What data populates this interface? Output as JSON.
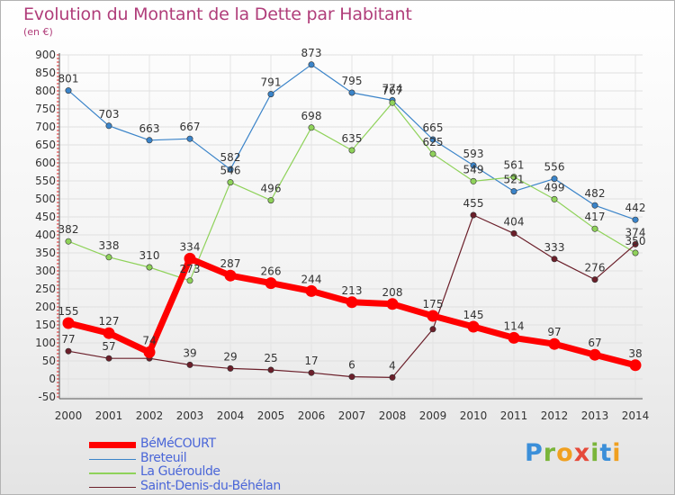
{
  "header": {
    "title": "Evolution du Montant de la Dette par Habitant",
    "unit": "(en €)"
  },
  "brand": {
    "logo_text": "Proxiti",
    "letters": [
      "P",
      "r",
      "o",
      "x",
      "i",
      "t",
      "i"
    ]
  },
  "chart_data": {
    "type": "line",
    "title": "Evolution du Montant de la Dette par Habitant",
    "subtitle": "(en €)",
    "x": [
      2000,
      2001,
      2002,
      2003,
      2004,
      2005,
      2006,
      2007,
      2008,
      2009,
      2010,
      2011,
      2012,
      2013,
      2014
    ],
    "ylim": [
      -50,
      900
    ],
    "yticks": [
      -50,
      0,
      50,
      100,
      150,
      200,
      250,
      300,
      350,
      400,
      450,
      500,
      550,
      600,
      650,
      700,
      750,
      800,
      850,
      900
    ],
    "grid": true,
    "legend_position": "bottom-left",
    "series": [
      {
        "name": "BéMéCOURT",
        "color": "#ff0000",
        "emphasis": true,
        "values": [
          155,
          127,
          74,
          334,
          287,
          266,
          244,
          213,
          208,
          175,
          145,
          114,
          97,
          67,
          38
        ]
      },
      {
        "name": "Breteuil",
        "color": "#3b84c9",
        "values": [
          801,
          703,
          663,
          667,
          582,
          791,
          873,
          795,
          774,
          665,
          593,
          521,
          556,
          482,
          442
        ]
      },
      {
        "name": "La Guéroulde",
        "color": "#8fd25a",
        "values": [
          382,
          338,
          310,
          273,
          546,
          496,
          698,
          635,
          767,
          625,
          549,
          561,
          499,
          417,
          350
        ]
      },
      {
        "name": "Saint-Denis-du-Béhélan",
        "color": "#6b1f2a",
        "values": [
          77,
          57,
          57,
          39,
          29,
          25,
          17,
          6,
          4,
          138,
          455,
          404,
          333,
          276,
          374
        ]
      }
    ],
    "data_labels": [
      {
        "series": 0,
        "index": 0,
        "text": "155"
      },
      {
        "series": 0,
        "index": 1,
        "text": "127"
      },
      {
        "series": 0,
        "index": 2,
        "text": "74"
      },
      {
        "series": 0,
        "index": 3,
        "text": "334"
      },
      {
        "series": 0,
        "index": 4,
        "text": "287"
      },
      {
        "series": 0,
        "index": 5,
        "text": "266"
      },
      {
        "series": 0,
        "index": 6,
        "text": "244"
      },
      {
        "series": 0,
        "index": 7,
        "text": "213"
      },
      {
        "series": 0,
        "index": 8,
        "text": "208"
      },
      {
        "series": 0,
        "index": 9,
        "text": "175"
      },
      {
        "series": 0,
        "index": 10,
        "text": "145"
      },
      {
        "series": 0,
        "index": 11,
        "text": "114"
      },
      {
        "series": 0,
        "index": 12,
        "text": "97"
      },
      {
        "series": 0,
        "index": 13,
        "text": "67"
      },
      {
        "series": 0,
        "index": 14,
        "text": "38"
      },
      {
        "series": 1,
        "index": 0,
        "text": "801"
      },
      {
        "series": 1,
        "index": 1,
        "text": "703"
      },
      {
        "series": 1,
        "index": 2,
        "text": "663"
      },
      {
        "series": 1,
        "index": 3,
        "text": "667"
      },
      {
        "series": 1,
        "index": 4,
        "text": "582"
      },
      {
        "series": 1,
        "index": 5,
        "text": "791"
      },
      {
        "series": 1,
        "index": 6,
        "text": "873"
      },
      {
        "series": 1,
        "index": 7,
        "text": "795"
      },
      {
        "series": 1,
        "index": 8,
        "text": "774"
      },
      {
        "series": 1,
        "index": 9,
        "text": "665"
      },
      {
        "series": 1,
        "index": 10,
        "text": "593"
      },
      {
        "series": 1,
        "index": 11,
        "text": "521"
      },
      {
        "series": 1,
        "index": 12,
        "text": "556"
      },
      {
        "series": 1,
        "index": 13,
        "text": "482"
      },
      {
        "series": 1,
        "index": 14,
        "text": "442"
      },
      {
        "series": 2,
        "index": 0,
        "text": "382"
      },
      {
        "series": 2,
        "index": 1,
        "text": "338"
      },
      {
        "series": 2,
        "index": 2,
        "text": "310"
      },
      {
        "series": 2,
        "index": 3,
        "text": "273"
      },
      {
        "series": 2,
        "index": 4,
        "text": "546"
      },
      {
        "series": 2,
        "index": 5,
        "text": "496"
      },
      {
        "series": 2,
        "index": 6,
        "text": "698"
      },
      {
        "series": 2,
        "index": 7,
        "text": "635"
      },
      {
        "series": 2,
        "index": 8,
        "text": "767"
      },
      {
        "series": 2,
        "index": 9,
        "text": "625"
      },
      {
        "series": 2,
        "index": 10,
        "text": "549"
      },
      {
        "series": 2,
        "index": 11,
        "text": "561"
      },
      {
        "series": 2,
        "index": 12,
        "text": "499"
      },
      {
        "series": 2,
        "index": 13,
        "text": "417"
      },
      {
        "series": 2,
        "index": 14,
        "text": "350"
      },
      {
        "series": 3,
        "index": 0,
        "text": "77"
      },
      {
        "series": 3,
        "index": 1,
        "text": "57"
      },
      {
        "series": 3,
        "index": 3,
        "text": "39"
      },
      {
        "series": 3,
        "index": 4,
        "text": "29"
      },
      {
        "series": 3,
        "index": 5,
        "text": "25"
      },
      {
        "series": 3,
        "index": 6,
        "text": "17"
      },
      {
        "series": 3,
        "index": 7,
        "text": "6"
      },
      {
        "series": 3,
        "index": 8,
        "text": "4"
      },
      {
        "series": 3,
        "index": 10,
        "text": "455"
      },
      {
        "series": 3,
        "index": 11,
        "text": "404"
      },
      {
        "series": 3,
        "index": 12,
        "text": "333"
      },
      {
        "series": 3,
        "index": 13,
        "text": "276"
      },
      {
        "series": 3,
        "index": 14,
        "text": "374"
      }
    ]
  }
}
